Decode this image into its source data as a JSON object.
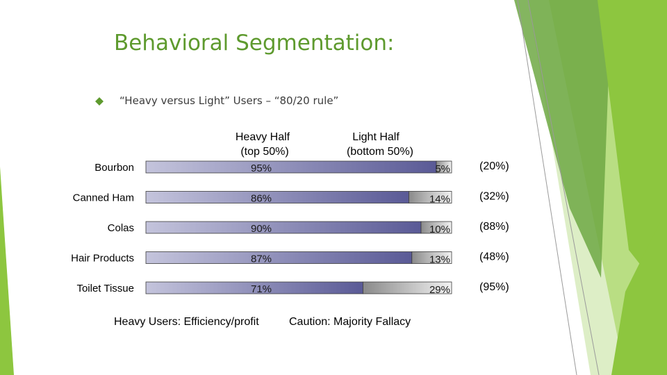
{
  "slide": {
    "title": "Behavioral Segmentation:",
    "bullet": "“Heavy versus Light” Users – “80/20 rule”",
    "footer_left": "Heavy Users: Efficiency/profit",
    "footer_right": "Caution: Majority Fallacy"
  },
  "colors": {
    "title": "#5e9a2e",
    "heavy_bar_start": "#c4c4dc",
    "heavy_bar_end": "#5a5a96",
    "light_bar_start": "#8a8a8a",
    "light_bar_end": "#f2f2f2",
    "accent_green": "#8dc63f"
  },
  "chart_data": {
    "type": "bar",
    "orientation": "horizontal-stacked-100",
    "header_heavy": [
      "Heavy Half",
      "(top 50%)"
    ],
    "header_light": [
      "Light Half",
      "(bottom 50%)"
    ],
    "categories": [
      "Bourbon",
      "Canned Ham",
      "Colas",
      "Hair Products",
      "Toilet Tissue"
    ],
    "series": [
      {
        "name": "Heavy Half",
        "values": [
          95,
          86,
          90,
          87,
          71
        ],
        "labels": [
          "95%",
          "86%",
          "90%",
          "87%",
          "71%"
        ]
      },
      {
        "name": "Light Half",
        "values": [
          5,
          14,
          10,
          13,
          29
        ],
        "labels": [
          "5%",
          "14%",
          "10%",
          "13%",
          "29%"
        ]
      }
    ],
    "right_labels": [
      "(20%)",
      "(32%)",
      "(88%)",
      "(48%)",
      "(95%)"
    ],
    "xlim": [
      0,
      100
    ]
  }
}
